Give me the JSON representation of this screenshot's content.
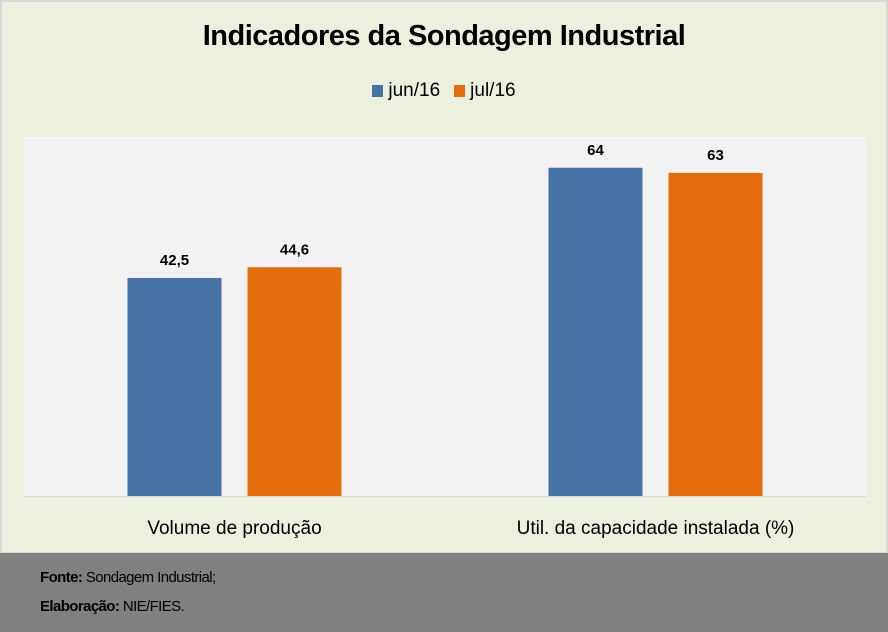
{
  "chart_data": {
    "type": "bar",
    "title": "Indicadores da Sondagem Industrial",
    "categories": [
      "Volume de produção",
      "Util. da capacidade instalada (%)"
    ],
    "series": [
      {
        "name": "jun/16",
        "color": "#4672a6",
        "values": [
          42.5,
          64
        ],
        "labels": [
          "42,5",
          "64"
        ]
      },
      {
        "name": "jul/16",
        "color": "#e46c0a",
        "values": [
          44.6,
          63
        ],
        "labels": [
          "44,6",
          "63"
        ]
      }
    ],
    "xlabel": "",
    "ylabel": "",
    "ylim": [
      0,
      70
    ],
    "grid": false,
    "legend": "top",
    "y_axis_visible": false,
    "plot_background": "#f2f2f2",
    "chart_background": "#ebf1de"
  },
  "footer": {
    "source_label": "Fonte:",
    "source_value": "Sondagem Industrial;",
    "credit_label": "Elaboração:",
    "credit_value": "NIE/FIES."
  }
}
